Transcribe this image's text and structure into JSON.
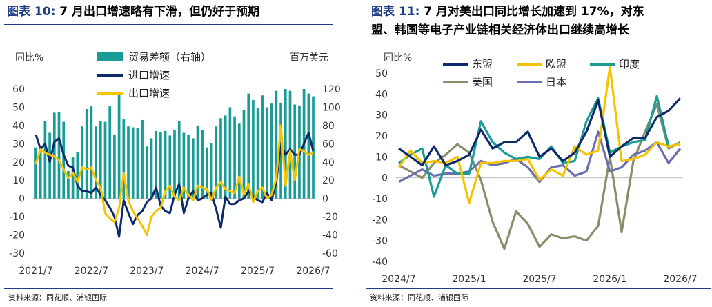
{
  "left": {
    "title_fig": "图表 10:",
    "title_text": "7 月出口增速略有下滑，但仍好于预期",
    "source": "资料来源：同花顺、浦银国际",
    "unit_left": "同比%",
    "unit_right": "百万美元",
    "legend": [
      "贸易差额（右轴）",
      "进口增速",
      "出口增速"
    ]
  },
  "right": {
    "title_fig": "图表 11:",
    "title_line1": "7 月对美出口同比增长加速到 17%，对东",
    "title_line2": "盟、韩国等电子产业链相关经济体出口继续高增长",
    "source": "资料来源：同花顺、浦银国际",
    "unit_left": "同比%",
    "legend": [
      "东盟",
      "欧盟",
      "印度",
      "美国",
      "日本"
    ]
  },
  "chart_data": [
    {
      "type": "bar+line",
      "x_ticks": [
        "2021/7",
        "2022/7",
        "2023/7",
        "2024/7",
        "2025/7",
        "2026/7"
      ],
      "ylim_left": [
        -30,
        60
      ],
      "yticks_left": [
        -30,
        -20,
        -10,
        0,
        10,
        20,
        30,
        40,
        50,
        60
      ],
      "ylim_right": [
        -60,
        120
      ],
      "yticks_right": [
        -60,
        -40,
        -20,
        0,
        20,
        40,
        60,
        80,
        100,
        120
      ],
      "n_months": 61,
      "colors": {
        "balance": "#1a9c96",
        "import": "#0d2a6b",
        "export": "#f5c400"
      },
      "series": [
        {
          "name": "贸易差额（右轴）",
          "axis": "right",
          "kind": "bar",
          "values": [
            56,
            53,
            85,
            72,
            94,
            95,
            84,
            30,
            45,
            51,
            79,
            98,
            101,
            79,
            85,
            84,
            101,
            70,
            117,
            87,
            79,
            78,
            77,
            86,
            57,
            66,
            74,
            73,
            74,
            69,
            75,
            85,
            72,
            70,
            66,
            80,
            75,
            56,
            61,
            79,
            88,
            91,
            100,
            90,
            82,
            97,
            115,
            108,
            99,
            113,
            100,
            104,
            118,
            105,
            120,
            118,
            103,
            102,
            120,
            115,
            112
          ]
        },
        {
          "name": "进口增速",
          "axis": "left",
          "kind": "line",
          "values": [
            35,
            27,
            30,
            20,
            31,
            33,
            24,
            18,
            17,
            7,
            4,
            4,
            3,
            6,
            2,
            -1,
            -5,
            -10,
            -21,
            -1,
            -8,
            -14,
            -9,
            -7,
            -2,
            0,
            6,
            -4,
            -7,
            -8,
            2,
            8,
            -8,
            0,
            4,
            -1,
            0,
            2,
            3,
            -6,
            -16,
            1,
            -3,
            -3,
            -1,
            0,
            4,
            1,
            -1,
            -2,
            3,
            -1,
            9,
            30,
            24,
            27,
            24,
            24,
            30,
            36,
            26
          ]
        },
        {
          "name": "出口增速",
          "axis": "left",
          "kind": "line",
          "values": [
            19,
            27,
            25,
            24,
            23,
            21,
            16,
            11,
            14,
            9,
            17,
            16,
            17,
            10,
            6,
            -8,
            -11,
            -13,
            -5,
            14,
            -1,
            -7,
            -11,
            -15,
            -20,
            -10,
            -7,
            -5,
            4,
            7,
            1,
            -1,
            6,
            2,
            -1,
            7,
            6,
            5,
            -1,
            6,
            9,
            5,
            4,
            3,
            12,
            2,
            8,
            -2,
            4,
            6,
            0,
            2,
            11,
            40,
            7,
            26,
            10,
            27,
            26,
            24,
            25
          ]
        }
      ]
    },
    {
      "type": "line",
      "x_ticks": [
        "2024/7",
        "2025/1",
        "2025/7",
        "2026/1",
        "2026/7"
      ],
      "ylim": [
        -40,
        50
      ],
      "yticks": [
        -40,
        -30,
        -20,
        -10,
        0,
        10,
        20,
        30,
        40,
        50
      ],
      "n_months": 25,
      "series": [
        {
          "name": "东盟",
          "color": "#0d2a6b",
          "values": [
            14,
            10,
            6,
            15,
            6,
            8,
            11,
            23,
            14,
            17,
            17,
            22,
            10,
            14,
            8,
            12,
            22,
            37,
            10,
            15,
            19,
            19,
            29,
            32,
            38
          ]
        },
        {
          "name": "欧盟",
          "color": "#f5c400",
          "values": [
            5,
            13,
            7,
            8,
            7,
            10,
            -12,
            7,
            7,
            8,
            8,
            9,
            -1,
            4,
            1,
            15,
            11,
            13,
            53,
            8,
            9,
            11,
            17,
            15,
            16
          ]
        },
        {
          "name": "印度",
          "color": "#1a9c96",
          "values": [
            7,
            11,
            14,
            -9,
            6,
            2,
            2,
            27,
            17,
            12,
            9,
            10,
            9,
            15,
            7,
            8,
            27,
            38,
            12,
            15,
            17,
            18,
            39,
            15,
            16
          ]
        },
        {
          "name": "美国",
          "color": "#8a8c6a",
          "values": [
            6,
            3,
            0,
            7,
            11,
            16,
            12,
            -1,
            -21,
            -34,
            -16,
            -22,
            -33,
            -27,
            -29,
            -28,
            -30,
            -23,
            10,
            -26,
            8,
            22,
            35,
            14,
            17
          ]
        },
        {
          "name": "日本",
          "color": "#6b6fad",
          "values": [
            -2,
            1,
            4,
            1,
            2,
            2,
            3,
            8,
            6,
            7,
            9,
            5,
            -2,
            5,
            6,
            1,
            3,
            22,
            3,
            5,
            11,
            13,
            17,
            7,
            14
          ]
        }
      ]
    }
  ]
}
